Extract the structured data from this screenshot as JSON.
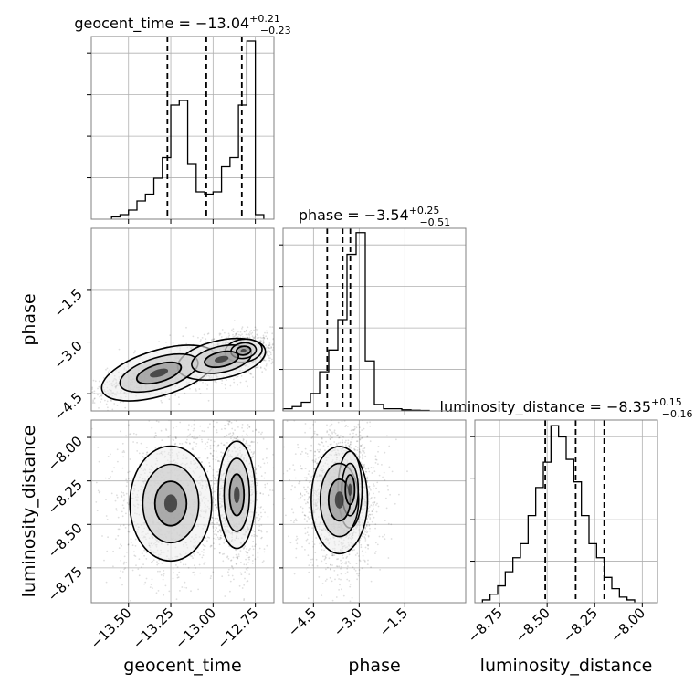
{
  "chart_data": {
    "type": "corner",
    "parameters": [
      "geocent_time",
      "phase",
      "luminosity_distance"
    ],
    "marginals": [
      {
        "name": "geocent_time",
        "title": {
          "text": "geocent_time = −13.04",
          "sup": "+0.21",
          "sub": "−0.23"
        },
        "xlim": [
          -13.72,
          -12.64
        ],
        "quantiles": [
          -13.27,
          -13.04,
          -12.83
        ],
        "bins_x0": -13.6,
        "bin_width": 0.05,
        "counts": [
          1,
          2,
          4,
          8,
          11,
          18,
          27,
          50,
          52,
          24,
          12,
          11,
          12,
          23,
          27,
          50,
          78,
          2
        ],
        "ylim": [
          0,
          80
        ]
      },
      {
        "name": "phase",
        "title": {
          "text": "phase = −3.54",
          "sup": "+0.25",
          "sub": "−0.51"
        },
        "xlim": [
          -5.5,
          0.5
        ],
        "quantiles": [
          -4.05,
          -3.54,
          -3.29
        ],
        "bins_x0": -5.5,
        "bin_width": 0.3,
        "counts": [
          1,
          2,
          4,
          8,
          18,
          28,
          42,
          72,
          82,
          23,
          3,
          1,
          1,
          0.5,
          0.3,
          0.2
        ],
        "ylim": [
          0,
          84
        ]
      },
      {
        "name": "luminosity_distance",
        "title": {
          "text": "luminosity_distance = −8.35",
          "sup": "+0.15",
          "sub": "−0.16"
        },
        "xlim": [
          -8.88,
          -7.92
        ],
        "quantiles": [
          -8.51,
          -8.35,
          -8.2
        ],
        "bins_x0": -8.84,
        "bin_width": 0.04,
        "counts": [
          1,
          3,
          6,
          11,
          16,
          21,
          31,
          41,
          50,
          63,
          59,
          51,
          43,
          31,
          21,
          16,
          9,
          5,
          2,
          1
        ],
        "ylim": [
          0,
          65
        ]
      }
    ],
    "joints": [
      {
        "x": "geocent_time",
        "y": "phase",
        "row": 1,
        "col": 0,
        "xlim": [
          -13.72,
          -12.64
        ],
        "ylim": [
          -5.0,
          0.3
        ],
        "blobs": [
          {
            "cx": -13.32,
            "cy": -3.9,
            "sx": 0.16,
            "sy": 0.3,
            "rho": 0.8,
            "n": 420
          },
          {
            "cx": -12.95,
            "cy": -3.5,
            "sx": 0.12,
            "sy": 0.25,
            "rho": 0.5,
            "n": 380
          },
          {
            "cx": -12.82,
            "cy": -3.25,
            "sx": 0.05,
            "sy": 0.15,
            "rho": 0.2,
            "n": 320
          }
        ]
      },
      {
        "x": "geocent_time",
        "y": "luminosity_distance",
        "row": 2,
        "col": 0,
        "xlim": [
          -13.72,
          -12.64
        ],
        "ylim": [
          -8.95,
          -7.9
        ],
        "blobs": [
          {
            "cx": -13.25,
            "cy": -8.38,
            "sx": 0.11,
            "sy": 0.15,
            "rho": 0.0,
            "n": 560
          },
          {
            "cx": -12.86,
            "cy": -8.33,
            "sx": 0.05,
            "sy": 0.14,
            "rho": 0.0,
            "n": 520
          }
        ]
      },
      {
        "x": "phase",
        "y": "luminosity_distance",
        "row": 2,
        "col": 1,
        "xlim": [
          -5.5,
          0.5
        ],
        "ylim": [
          -8.95,
          -7.9
        ],
        "blobs": [
          {
            "cx": -3.65,
            "cy": -8.36,
            "sx": 0.42,
            "sy": 0.14,
            "rho": 0.0,
            "n": 700
          },
          {
            "cx": -3.3,
            "cy": -8.3,
            "sx": 0.18,
            "sy": 0.1,
            "rho": 0.0,
            "n": 260
          }
        ]
      }
    ],
    "ticks": {
      "geocent_time": [
        -13.5,
        -13.25,
        -13.0,
        -12.75
      ],
      "phase": [
        -4.5,
        -3.0,
        -1.5
      ],
      "luminosity_distance": [
        -8.75,
        -8.5,
        -8.25,
        -8.0
      ]
    },
    "tick_labels": {
      "geocent_time": [
        "−13.50",
        "−13.25",
        "−13.00",
        "−12.75"
      ],
      "phase": [
        "−4.5",
        "−3.0",
        "−1.5"
      ],
      "luminosity_distance": [
        "−8.75",
        "−8.50",
        "−8.25",
        "−8.00"
      ]
    },
    "axis_labels": {
      "geocent_time": "geocent_time",
      "phase": "phase",
      "luminosity_distance": "luminosity_distance"
    },
    "grid": true,
    "legend": "none",
    "colors": {
      "line": "#000000",
      "grid": "#b0b0b0",
      "points": "#000000",
      "frame": "#808080"
    }
  }
}
